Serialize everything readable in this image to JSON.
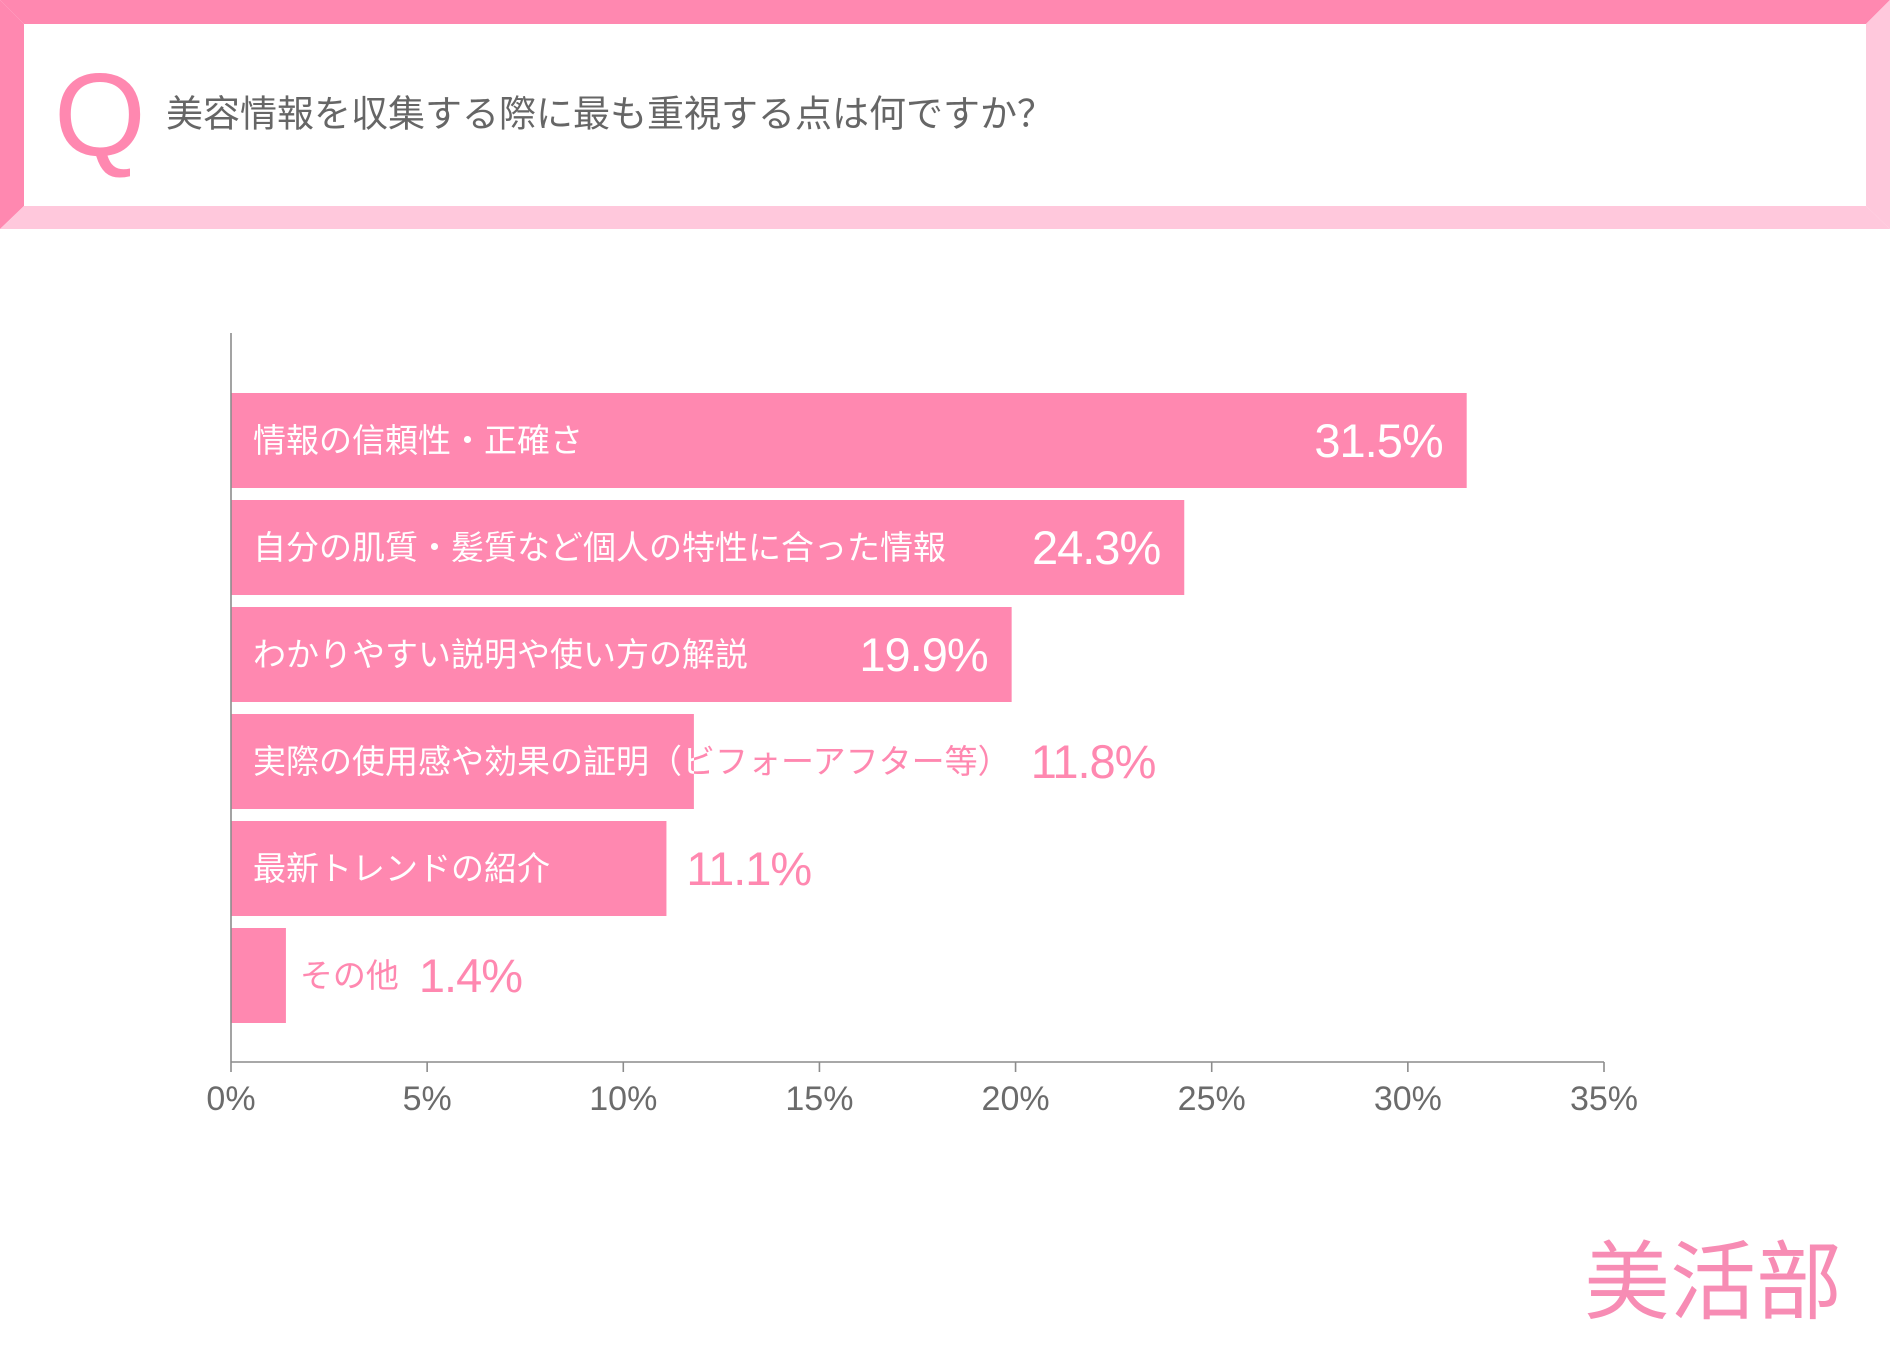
{
  "header": {
    "q_mark": "Q",
    "question": "美容情報を収集する際に最も重視する点は何ですか？"
  },
  "brand": {
    "logo_text": "美活部"
  },
  "colors": {
    "frame_dark": "#FF88B0",
    "frame_light": "#FFC8DC",
    "accent": "#FF88B0",
    "bar": "#FF88B0",
    "label_on_bar": "#FFFFFF",
    "question_text": "#666666",
    "tick_text": "#6B6B6B",
    "axis": "#8C8C8C",
    "logo": "#F78CB4"
  },
  "chart_data": {
    "type": "bar",
    "orientation": "horizontal",
    "title": "",
    "xlabel": "",
    "ylabel": "",
    "categories": [
      "情報の信頼性・正確さ",
      "自分の肌質・髪質など個人の特性に合った情報",
      "わかりやすい説明や使い方の解説",
      "実際の使用感や効果の証明（ビフォーアフター等）",
      "最新トレンドの紹介",
      "その他"
    ],
    "values": [
      31.5,
      24.3,
      19.9,
      11.8,
      11.1,
      1.4
    ],
    "data_labels": [
      "31.5%",
      "24.3%",
      "19.9%",
      "11.8%",
      "11.1%",
      "1.4%"
    ],
    "xlim": [
      0,
      35
    ],
    "x_ticks": [
      0,
      5,
      10,
      15,
      20,
      25,
      30,
      35
    ],
    "x_tick_labels": [
      "0%",
      "5%",
      "10%",
      "15%",
      "20%",
      "25%",
      "30%",
      "35%"
    ],
    "grid": false,
    "legend": "none"
  }
}
